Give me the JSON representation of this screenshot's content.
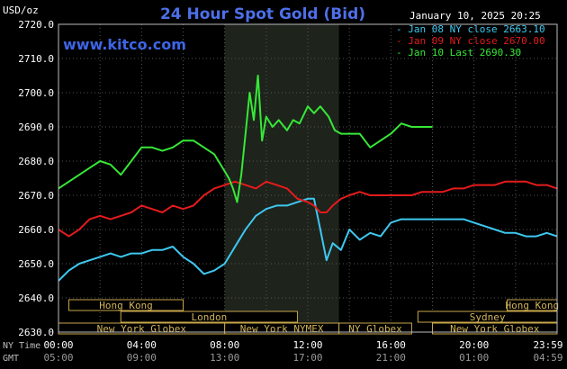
{
  "header": {
    "title": "24 Hour Spot Gold (Bid)",
    "unit_label": "USD/oz",
    "website": "www.kitco.com",
    "timestamp": "January 10, 2025 20:25"
  },
  "legend": [
    {
      "label": "- Jan 08 NY close 2663.10",
      "color": "#3ec8f0"
    },
    {
      "label": "- Jan 09 NY close 2670.00",
      "color": "#e51b1b"
    },
    {
      "label": "- Jan 10 Last 2690.30",
      "color": "#36e836"
    }
  ],
  "axis_row_labels": {
    "ny": "NY Time",
    "gmt": "GMT"
  },
  "sessions_row1": [
    {
      "label": "Hong Kong",
      "start": 0.5,
      "end": 6.0
    },
    {
      "label": "Hong Kong",
      "start": 21.6,
      "end": 24
    }
  ],
  "sessions_row2": [
    {
      "label": "London",
      "start": 3.0,
      "end": 11.5
    },
    {
      "label": "Sydney",
      "start": 17.3,
      "end": 24
    }
  ],
  "sessions_row3": [
    {
      "label": "New York Globex",
      "start": 0,
      "end": 8.0
    },
    {
      "label": "New York NYMEX",
      "start": 8.0,
      "end": 13.5
    },
    {
      "label": "NY Globex",
      "start": 13.5,
      "end": 17.0
    },
    {
      "label": "New York Globex",
      "start": 18.0,
      "end": 24
    }
  ],
  "chart_data": {
    "type": "line",
    "title": "24 Hour Spot Gold (Bid)",
    "ylabel": "USD/oz",
    "ylim": [
      2630,
      2720
    ],
    "yticks": [
      2630,
      2640,
      2650,
      2660,
      2670,
      2680,
      2690,
      2700,
      2710,
      2720
    ],
    "ytick_labels": [
      "2630.0",
      "2640.0",
      "2650.0",
      "2660.0",
      "2670.0",
      "2680.0",
      "2690.0",
      "2700.0",
      "2710.0",
      "2720.0"
    ],
    "xlim": [
      0,
      24
    ],
    "xticks": [
      0,
      4,
      8,
      12,
      16,
      20,
      23.98
    ],
    "xtick_labels_ny": [
      "00:00",
      "04:00",
      "08:00",
      "12:00",
      "16:00",
      "20:00",
      "23:59"
    ],
    "xtick_labels_gmt": [
      "05:00",
      "09:00",
      "13:00",
      "17:00",
      "21:00",
      "01:00",
      "04:59"
    ],
    "highlight_range": [
      8.0,
      13.5
    ],
    "grid": true,
    "series": [
      {
        "name": "Jan 08 NY close 2663.10",
        "color": "#3ec8f0",
        "x": [
          0,
          0.5,
          1,
          1.5,
          2,
          2.5,
          3,
          3.5,
          4,
          4.5,
          5,
          5.5,
          6,
          6.5,
          7,
          7.5,
          8,
          8.3,
          8.6,
          9,
          9.5,
          10,
          10.5,
          11,
          11.5,
          12,
          12.3,
          12.6,
          12.9,
          13.2,
          13.6,
          14,
          14.5,
          15,
          15.5,
          16,
          16.5,
          17,
          17.5,
          18,
          18.5,
          19,
          19.5,
          20,
          20.5,
          21,
          21.5,
          22,
          22.5,
          23,
          23.5,
          24
        ],
        "y": [
          2645,
          2648,
          2650,
          2651,
          2652,
          2653,
          2652,
          2653,
          2653,
          2654,
          2654,
          2655,
          2652,
          2650,
          2647,
          2648,
          2650,
          2653,
          2656,
          2660,
          2664,
          2666,
          2667,
          2667,
          2668,
          2669,
          2669,
          2660,
          2651,
          2656,
          2654,
          2660,
          2657,
          2659,
          2658,
          2662,
          2663,
          2663,
          2663,
          2663,
          2663,
          2663,
          2663,
          2662,
          2661,
          2660,
          2659,
          2659,
          2658,
          2658,
          2659,
          2658
        ]
      },
      {
        "name": "Jan 09 NY close 2670.00",
        "color": "#e51b1b",
        "x": [
          0,
          0.5,
          1,
          1.5,
          2,
          2.5,
          3,
          3.5,
          4,
          4.5,
          5,
          5.5,
          6,
          6.5,
          7,
          7.5,
          8,
          8.5,
          9,
          9.5,
          10,
          10.5,
          11,
          11.5,
          12,
          12.3,
          12.6,
          12.9,
          13.2,
          13.6,
          14,
          14.5,
          15,
          15.5,
          16,
          16.5,
          17,
          17.5,
          18,
          18.5,
          19,
          19.5,
          20,
          20.5,
          21,
          21.5,
          22,
          22.5,
          23,
          23.5,
          24
        ],
        "y": [
          2660,
          2658,
          2660,
          2663,
          2664,
          2663,
          2664,
          2665,
          2667,
          2666,
          2665,
          2667,
          2666,
          2667,
          2670,
          2672,
          2673,
          2674,
          2673,
          2672,
          2674,
          2673,
          2672,
          2669,
          2668,
          2667,
          2665,
          2665,
          2667,
          2669,
          2670,
          2671,
          2670,
          2670,
          2670,
          2670,
          2670,
          2671,
          2671,
          2671,
          2672,
          2672,
          2673,
          2673,
          2673,
          2674,
          2674,
          2674,
          2673,
          2673,
          2672
        ]
      },
      {
        "name": "Jan 10 Last 2690.30",
        "color": "#36e836",
        "x": [
          0,
          0.5,
          1,
          1.5,
          2,
          2.5,
          3,
          3.5,
          4,
          4.5,
          5,
          5.5,
          6,
          6.5,
          7,
          7.5,
          8,
          8.2,
          8.4,
          8.6,
          8.8,
          9,
          9.2,
          9.4,
          9.6,
          9.8,
          10,
          10.3,
          10.6,
          11,
          11.3,
          11.6,
          12,
          12.3,
          12.6,
          13,
          13.3,
          13.6,
          14,
          14.5,
          15,
          15.5,
          16,
          16.5,
          17,
          17.5,
          18
        ],
        "y": [
          2672,
          2674,
          2676,
          2678,
          2680,
          2679,
          2676,
          2680,
          2684,
          2684,
          2683,
          2684,
          2686,
          2686,
          2684,
          2682,
          2677,
          2675,
          2672,
          2668,
          2676,
          2688,
          2700,
          2692,
          2705,
          2686,
          2693,
          2690,
          2692,
          2689,
          2692,
          2691,
          2696,
          2694,
          2696,
          2693,
          2689,
          2688,
          2688,
          2688,
          2684,
          2686,
          2688,
          2691,
          2690,
          2690,
          2690
        ]
      }
    ]
  }
}
